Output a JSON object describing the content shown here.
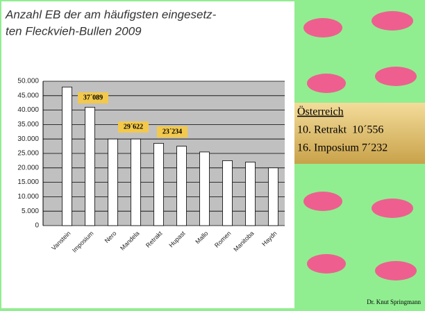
{
  "chart_data": {
    "type": "bar",
    "title": [
      "Anzahl EB der am häufigsten eingesetz-",
      "ten Fleckvieh-Bullen 2009"
    ],
    "categories": [
      "Vanstein",
      "Imposium",
      "Nero",
      "Mandela",
      "Retrakt",
      "Hupast",
      "Mallo",
      "Romen",
      "Manitoba",
      "Haydn"
    ],
    "values": [
      48000,
      41000,
      30000,
      30000,
      28500,
      27500,
      25500,
      22500,
      22000,
      20000
    ],
    "color": "#ffffff",
    "ylim": [
      0,
      50000
    ],
    "yticks": [
      0,
      {
        "value": 5000,
        "label": "5.000"
      },
      {
        "value": 10000,
        "label": "10.000"
      },
      {
        "value": 15000,
        "label": "15.000"
      },
      {
        "value": 20000,
        "label": "20.000"
      },
      {
        "value": 25000,
        "label": "25.000"
      },
      {
        "value": 30000,
        "label": "30.000"
      },
      {
        "value": 35000,
        "label": "35.000"
      },
      {
        "value": 40000,
        "label": "40.000"
      },
      {
        "value": 45000,
        "label": "45.000"
      },
      {
        "value": 50000,
        "label": "50.000"
      }
    ],
    "grid": true,
    "annotations": [
      "37´089",
      "29´622",
      "23´234"
    ]
  },
  "panel": {
    "title": "Österreich",
    "items": [
      "10. Retrakt  10´556",
      "16. Imposium 7´232"
    ]
  },
  "footer": "Dr. Knut Springmann"
}
